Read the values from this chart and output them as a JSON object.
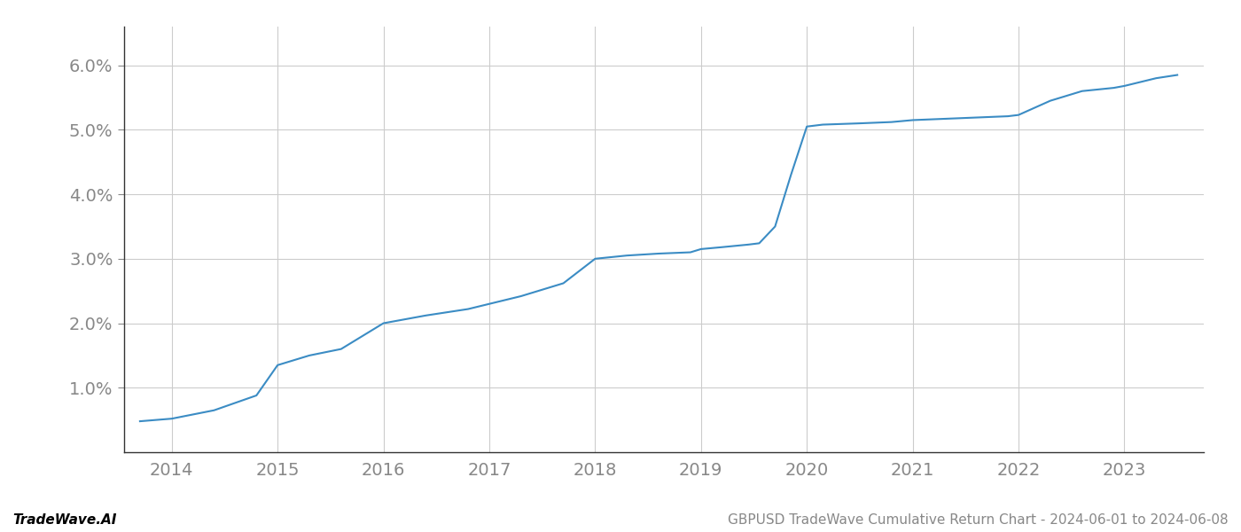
{
  "x_years": [
    2013.7,
    2014.0,
    2014.4,
    2014.8,
    2015.0,
    2015.3,
    2015.6,
    2016.0,
    2016.4,
    2016.8,
    2017.0,
    2017.3,
    2017.7,
    2018.0,
    2018.3,
    2018.6,
    2018.9,
    2019.0,
    2019.2,
    2019.45,
    2019.55,
    2019.7,
    2019.85,
    2020.0,
    2020.15,
    2020.5,
    2020.8,
    2021.0,
    2021.3,
    2021.6,
    2021.9,
    2022.0,
    2022.3,
    2022.6,
    2022.9,
    2023.0,
    2023.3,
    2023.5
  ],
  "y_values": [
    0.48,
    0.52,
    0.65,
    0.88,
    1.35,
    1.5,
    1.6,
    2.0,
    2.12,
    2.22,
    2.3,
    2.42,
    2.62,
    3.0,
    3.05,
    3.08,
    3.1,
    3.15,
    3.18,
    3.22,
    3.24,
    3.5,
    4.3,
    5.05,
    5.08,
    5.1,
    5.12,
    5.15,
    5.17,
    5.19,
    5.21,
    5.23,
    5.45,
    5.6,
    5.65,
    5.68,
    5.8,
    5.85
  ],
  "line_color": "#3b8cc4",
  "line_width": 1.5,
  "xlim": [
    2013.55,
    2023.75
  ],
  "ylim": [
    0.0,
    6.6
  ],
  "yticks": [
    1.0,
    2.0,
    3.0,
    4.0,
    5.0,
    6.0
  ],
  "xticks": [
    2014,
    2015,
    2016,
    2017,
    2018,
    2019,
    2020,
    2021,
    2022,
    2023
  ],
  "footer_left": "TradeWave.AI",
  "footer_right": "GBPUSD TradeWave Cumulative Return Chart - 2024-06-01 to 2024-06-08",
  "background_color": "#ffffff",
  "grid_color": "#cccccc",
  "tick_label_color": "#888888",
  "footer_left_color": "#000000",
  "footer_right_color": "#888888",
  "tick_fontsize": 14,
  "footer_fontsize": 11
}
